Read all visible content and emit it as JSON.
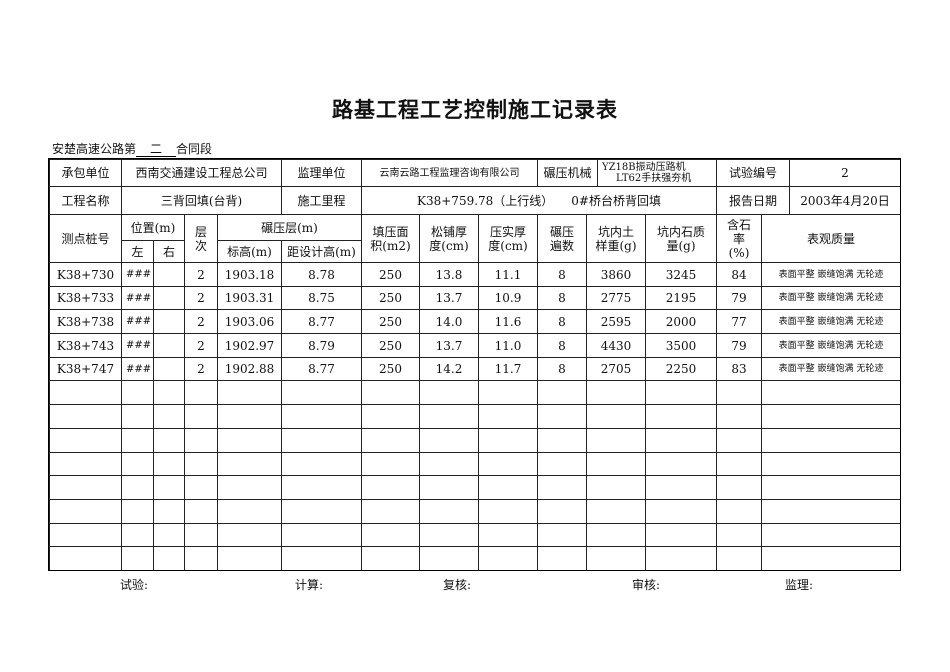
{
  "title": "路基工程工艺控制施工记录表",
  "subtitle": {
    "prefix": "安楚高速公路第",
    "section": "二",
    "suffix": "合同段"
  },
  "info": {
    "contractor_label": "承包单位",
    "contractor": "西南交通建设工程总公司",
    "supervisor_label": "监理单位",
    "supervisor": "云南云路工程监理咨询有限公司",
    "machine_label": "碾压机械",
    "machine_1": "YZ18B振动压路机",
    "machine_2": "LT62手扶强夯机",
    "test_no_label": "试验编号",
    "test_no": "2",
    "project_label": "工程名称",
    "project": "三背回填(台背)",
    "mileage_label": "施工里程",
    "mileage": "K38+759.78（上行线）　　0#桥台桥背回填",
    "report_date_label": "报告日期",
    "report_date": "2003年4月20日"
  },
  "headers": {
    "station": "测点桩号",
    "position": "位置(m)",
    "left": "左",
    "right": "右",
    "layer": "层次",
    "compacted_layer": "碾压层(m)",
    "elevation": "标高(m)",
    "to_design": "距设计高(m)",
    "area": "填压面积(m2)",
    "loose": "松铺厚度(cm)",
    "compact": "压实厚度(cm)",
    "passes": "碾压遍数",
    "soil": "坑内土样重(g)",
    "stone": "坑内石质量(g)",
    "stone_rate": "含石率(%)",
    "quality": "表观质量"
  },
  "rows": [
    {
      "station": "K38+730",
      "left": "###",
      "right": "",
      "layer": "2",
      "elevation": "1903.18",
      "to_design": "8.78",
      "area": "250",
      "loose": "13.8",
      "compact": "11.1",
      "passes": "8",
      "soil": "3860",
      "stone": "3245",
      "stone_rate": "84",
      "quality": "表面平整 嵌缝饱满 无轮迹"
    },
    {
      "station": "K38+733",
      "left": "###",
      "right": "",
      "layer": "2",
      "elevation": "1903.31",
      "to_design": "8.75",
      "area": "250",
      "loose": "13.7",
      "compact": "10.9",
      "passes": "8",
      "soil": "2775",
      "stone": "2195",
      "stone_rate": "79",
      "quality": "表面平整 嵌缝饱满 无轮迹"
    },
    {
      "station": "K38+738",
      "left": "###",
      "right": "",
      "layer": "2",
      "elevation": "1903.06",
      "to_design": "8.77",
      "area": "250",
      "loose": "14.0",
      "compact": "11.6",
      "passes": "8",
      "soil": "2595",
      "stone": "2000",
      "stone_rate": "77",
      "quality": "表面平整 嵌缝饱满 无轮迹"
    },
    {
      "station": "K38+743",
      "left": "###",
      "right": "",
      "layer": "2",
      "elevation": "1902.97",
      "to_design": "8.79",
      "area": "250",
      "loose": "13.7",
      "compact": "11.0",
      "passes": "8",
      "soil": "4430",
      "stone": "3500",
      "stone_rate": "79",
      "quality": "表面平整 嵌缝饱满 无轮迹"
    },
    {
      "station": "K38+747",
      "left": "###",
      "right": "",
      "layer": "2",
      "elevation": "1902.88",
      "to_design": "8.77",
      "area": "250",
      "loose": "14.2",
      "compact": "11.7",
      "passes": "8",
      "soil": "2705",
      "stone": "2250",
      "stone_rate": "83",
      "quality": "表面平整 嵌缝饱满 无轮迹"
    }
  ],
  "empty_rows": 8,
  "footer": {
    "test": "试验:",
    "calc": "计算:",
    "review": "复核:",
    "audit": "审核:",
    "supervise": "监理:"
  }
}
